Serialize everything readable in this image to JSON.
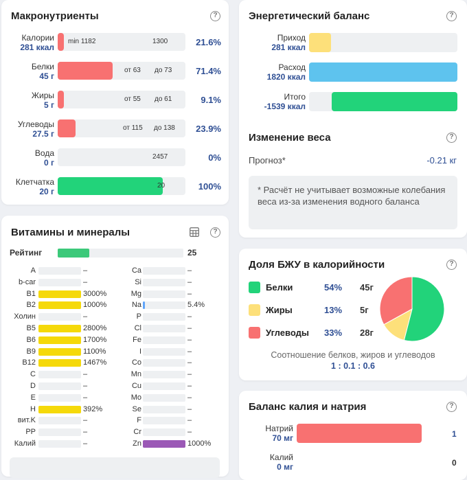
{
  "macros": {
    "title": "Макронутриенты",
    "help": "?",
    "rows": [
      {
        "name": "Калории",
        "value": "281 ккал",
        "pct": "21.6%",
        "fill": 0.03,
        "color": "#f87171",
        "marks": [
          {
            "text": "min 1182",
            "pos": 0.08
          },
          {
            "text": "1300",
            "pos": 0.74
          }
        ]
      },
      {
        "name": "Белки",
        "value": "45 г",
        "pct": "71.4%",
        "fill": 0.43,
        "color": "#f87171",
        "marks": [
          {
            "text": "от 63",
            "pos": 0.52
          },
          {
            "text": "до 73",
            "pos": 0.76
          }
        ]
      },
      {
        "name": "Жиры",
        "value": "5 г",
        "pct": "9.1%",
        "fill": 0.05,
        "color": "#f87171",
        "marks": [
          {
            "text": "от 55",
            "pos": 0.52
          },
          {
            "text": "до 61",
            "pos": 0.76
          }
        ]
      },
      {
        "name": "Углеводы",
        "value": "27.5 г",
        "pct": "23.9%",
        "fill": 0.14,
        "color": "#f87171",
        "marks": [
          {
            "text": "от 115",
            "pos": 0.51
          },
          {
            "text": "до 138",
            "pos": 0.75
          }
        ]
      },
      {
        "name": "Вода",
        "value": "0 г",
        "pct": "0%",
        "fill": 0,
        "color": "#60a5fa",
        "marks": [
          {
            "text": "2457",
            "pos": 0.74
          }
        ]
      },
      {
        "name": "Клетчатка",
        "value": "20 г",
        "pct": "100%",
        "fill": 0.82,
        "color": "#22d37a",
        "marks": [
          {
            "text": "20",
            "pos": 0.78
          }
        ]
      }
    ]
  },
  "vitamins": {
    "title": "Витамины и минералы",
    "rating_label": "Рейтинг",
    "rating_value": "25",
    "rating_fill": 0.25,
    "left": [
      {
        "name": "A",
        "value": "–",
        "fill": 0,
        "color": "#f5d90a"
      },
      {
        "name": "b-car",
        "value": "–",
        "fill": 0,
        "color": "#f5d90a"
      },
      {
        "name": "B1",
        "value": "3000%",
        "fill": 1,
        "color": "#f5d90a"
      },
      {
        "name": "B2",
        "value": "1000%",
        "fill": 1,
        "color": "#f5d90a"
      },
      {
        "name": "Холин",
        "value": "–",
        "fill": 0,
        "color": "#f5d90a"
      },
      {
        "name": "B5",
        "value": "2800%",
        "fill": 1,
        "color": "#f5d90a"
      },
      {
        "name": "B6",
        "value": "1700%",
        "fill": 1,
        "color": "#f5d90a"
      },
      {
        "name": "B9",
        "value": "1100%",
        "fill": 1,
        "color": "#f5d90a"
      },
      {
        "name": "B12",
        "value": "1467%",
        "fill": 1,
        "color": "#f5d90a"
      },
      {
        "name": "C",
        "value": "–",
        "fill": 0,
        "color": "#f5d90a"
      },
      {
        "name": "D",
        "value": "–",
        "fill": 0,
        "color": "#f5d90a"
      },
      {
        "name": "E",
        "value": "–",
        "fill": 0,
        "color": "#f5d90a"
      },
      {
        "name": "H",
        "value": "392%",
        "fill": 1,
        "color": "#f5d90a"
      },
      {
        "name": "вит.K",
        "value": "–",
        "fill": 0,
        "color": "#f5d90a"
      },
      {
        "name": "PP",
        "value": "–",
        "fill": 0,
        "color": "#f5d90a"
      },
      {
        "name": "Калий",
        "value": "–",
        "fill": 0,
        "color": "#f5d90a"
      }
    ],
    "right": [
      {
        "name": "Ca",
        "value": "–",
        "fill": 0,
        "color": "#60a5fa"
      },
      {
        "name": "Si",
        "value": "–",
        "fill": 0,
        "color": "#60a5fa"
      },
      {
        "name": "Mg",
        "value": "–",
        "fill": 0,
        "color": "#60a5fa"
      },
      {
        "name": "Na",
        "value": "5.4%",
        "fill": 0.054,
        "color": "#60a5fa"
      },
      {
        "name": "P",
        "value": "–",
        "fill": 0,
        "color": "#60a5fa"
      },
      {
        "name": "Cl",
        "value": "–",
        "fill": 0,
        "color": "#60a5fa"
      },
      {
        "name": "Fe",
        "value": "–",
        "fill": 0,
        "color": "#60a5fa"
      },
      {
        "name": "I",
        "value": "–",
        "fill": 0,
        "color": "#60a5fa"
      },
      {
        "name": "Co",
        "value": "–",
        "fill": 0,
        "color": "#60a5fa"
      },
      {
        "name": "Mn",
        "value": "–",
        "fill": 0,
        "color": "#60a5fa"
      },
      {
        "name": "Cu",
        "value": "–",
        "fill": 0,
        "color": "#60a5fa"
      },
      {
        "name": "Mo",
        "value": "–",
        "fill": 0,
        "color": "#60a5fa"
      },
      {
        "name": "Se",
        "value": "–",
        "fill": 0,
        "color": "#60a5fa"
      },
      {
        "name": "F",
        "value": "–",
        "fill": 0,
        "color": "#60a5fa"
      },
      {
        "name": "Cr",
        "value": "–",
        "fill": 0,
        "color": "#60a5fa"
      },
      {
        "name": "Zn",
        "value": "1000%",
        "fill": 1,
        "color": "#9b59b6"
      }
    ]
  },
  "energy": {
    "title": "Энергетический баланс",
    "rows": [
      {
        "name": "Приход",
        "value": "281 ккал",
        "fill": 0.15,
        "start": 0,
        "color": "#fde07a"
      },
      {
        "name": "Расход",
        "value": "1820 ккал",
        "fill": 1.0,
        "start": 0,
        "color": "#5ec3ee"
      },
      {
        "name": "Итого",
        "value": "-1539 ккал",
        "fill": 0.845,
        "start": 0.155,
        "color": "#22d37a"
      }
    ]
  },
  "weight": {
    "title": "Изменение веса",
    "forecast_label": "Прогноз*",
    "forecast_value": "-0.21 кг",
    "note": "* Расчёт не учитывает возможные колебания веса из-за изменения водного баланса"
  },
  "bju": {
    "title": "Доля БЖУ в калорийности",
    "items": [
      {
        "name": "Белки",
        "pct": "54%",
        "grams": "45г",
        "color": "#22d37a",
        "value": 54
      },
      {
        "name": "Жиры",
        "pct": "13%",
        "grams": "5г",
        "color": "#fde07a",
        "value": 13
      },
      {
        "name": "Углеводы",
        "pct": "33%",
        "grams": "28г",
        "color": "#f87171",
        "value": 33
      }
    ],
    "ratio_label": "Соотношение белков, жиров и углеводов",
    "ratio_value": "1 : 0.1 : 0.6"
  },
  "kna": {
    "title": "Баланс калия и натрия",
    "rows": [
      {
        "name": "Натрий",
        "value": "70 мг",
        "fill": 1.0,
        "color": "#f87171",
        "num": "1"
      },
      {
        "name": "Калий",
        "value": "0 мг",
        "fill": 0,
        "color": "#60a5fa",
        "num": "0"
      }
    ]
  }
}
